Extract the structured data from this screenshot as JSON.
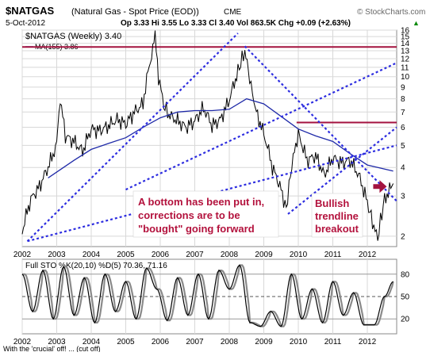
{
  "header": {
    "symbol": "$NATGAS",
    "description": "(Natural Gas - Spot Price (EOD))",
    "exchange": "CME",
    "date": "5-Oct-2012",
    "quote": "Op 3.33  Hi 3.55  Lo 3.33  Cl 3.40  Vol 863.5K  Chg +0.09 (+2.63%)",
    "quote_arrow": "▲",
    "brand": "© StockCharts.com"
  },
  "main_panel": {
    "legend_title": "$NATGAS (Weekly) 3.40",
    "legend_ma": "MA(155) 3.86"
  },
  "annotations": {
    "bottom_lines": [
      "A bottom has been put in,",
      "corrections are to be",
      "\"bought\" going forward"
    ],
    "breakout_lines": [
      "Bullish",
      "trendline",
      "breakout"
    ]
  },
  "sto_panel": {
    "legend": "Full STO %K(20,10) %D(5) 70.36, 71.16"
  },
  "footer_text": "With the 'crucial' off! ... (cut off)",
  "colors": {
    "price": "#000000",
    "ma": "#1f2aa8",
    "trendline": "#2d2de0",
    "resistance": "#a3123f",
    "annotation_text": "#b3123d",
    "sto_k": "#000000",
    "sto_d": "#8a8a8a",
    "arrow": "#a3123f"
  },
  "chart_data": [
    {
      "type": "line",
      "title": "$NATGAS (Weekly)",
      "x_tick_labels": [
        "2002",
        "2003",
        "2004",
        "2005",
        "2006",
        "2007",
        "2008",
        "2009",
        "2010",
        "2011",
        "2012"
      ],
      "y_tick_labels": [
        "2",
        "3",
        "4",
        "5",
        "6",
        "7",
        "8",
        "9",
        "10",
        "11",
        "12",
        "13",
        "14",
        "15",
        "16"
      ],
      "y_scale": "log",
      "ylim": [
        1.8,
        16
      ],
      "grid": true,
      "series": [
        {
          "name": "$NATGAS (Weekly)",
          "x": [
            2002.0,
            2002.25,
            2002.5,
            2002.75,
            2003.0,
            2003.1,
            2003.25,
            2003.5,
            2003.75,
            2004.0,
            2004.25,
            2004.5,
            2004.75,
            2005.0,
            2005.25,
            2005.5,
            2005.75,
            2005.85,
            2005.95,
            2006.1,
            2006.25,
            2006.5,
            2006.75,
            2007.0,
            2007.25,
            2007.5,
            2007.75,
            2008.0,
            2008.25,
            2008.45,
            2008.55,
            2008.75,
            2009.0,
            2009.25,
            2009.5,
            2009.65,
            2009.85,
            2010.0,
            2010.25,
            2010.5,
            2010.75,
            2011.0,
            2011.25,
            2011.5,
            2011.75,
            2012.0,
            2012.15,
            2012.3,
            2012.5,
            2012.75
          ],
          "values": [
            2.1,
            2.9,
            3.3,
            4.0,
            5.0,
            8.0,
            5.5,
            5.2,
            4.7,
            5.9,
            5.8,
            6.1,
            6.5,
            6.2,
            7.0,
            7.6,
            12.5,
            14.8,
            10.0,
            7.5,
            6.8,
            6.4,
            6.0,
            6.4,
            7.3,
            6.1,
            6.5,
            7.9,
            10.5,
            13.0,
            10.5,
            7.2,
            5.6,
            4.0,
            3.2,
            2.6,
            4.4,
            5.6,
            4.3,
            4.5,
            3.7,
            4.4,
            4.2,
            4.3,
            3.7,
            2.8,
            2.3,
            1.95,
            2.9,
            3.4
          ]
        },
        {
          "name": "MA(155)",
          "x": [
            2002.75,
            2003.5,
            2004.0,
            2004.5,
            2005.0,
            2005.5,
            2006.0,
            2006.5,
            2007.0,
            2007.5,
            2008.0,
            2008.5,
            2009.0,
            2009.5,
            2010.0,
            2010.5,
            2011.0,
            2011.5,
            2012.0,
            2012.75
          ],
          "values": [
            3.6,
            4.3,
            4.8,
            5.1,
            5.4,
            6.0,
            6.6,
            7.0,
            7.1,
            7.1,
            7.2,
            8.0,
            7.6,
            6.7,
            5.9,
            5.5,
            5.2,
            4.6,
            4.1,
            3.86
          ]
        }
      ],
      "annotations": [
        "A bottom has been put in, corrections are to be \"bought\" going forward",
        "Bullish trendline breakout"
      ]
    },
    {
      "type": "line",
      "title": "Full STO %K(20,10) %D(5)",
      "x_tick_labels": [
        "2002",
        "2003",
        "2004",
        "2005",
        "2006",
        "2007",
        "2008",
        "2009",
        "2010",
        "2011",
        "2012"
      ],
      "y_tick_labels": [
        "20",
        "50",
        "80"
      ],
      "ylim": [
        0,
        100
      ],
      "series": [
        {
          "name": "%K",
          "x": [
            2002.0,
            2002.3,
            2002.6,
            2002.9,
            2003.2,
            2003.5,
            2003.8,
            2004.1,
            2004.4,
            2004.7,
            2005.0,
            2005.3,
            2005.6,
            2005.9,
            2006.2,
            2006.5,
            2006.8,
            2007.1,
            2007.4,
            2007.7,
            2008.0,
            2008.3,
            2008.6,
            2008.9,
            2009.2,
            2009.5,
            2009.8,
            2010.1,
            2010.4,
            2010.7,
            2011.0,
            2011.3,
            2011.6,
            2011.9,
            2012.2,
            2012.5,
            2012.75
          ],
          "values": [
            80,
            30,
            85,
            20,
            90,
            25,
            75,
            15,
            80,
            30,
            70,
            20,
            88,
            60,
            18,
            75,
            25,
            80,
            20,
            85,
            60,
            92,
            15,
            10,
            30,
            10,
            80,
            20,
            60,
            15,
            70,
            25,
            55,
            12,
            12,
            50,
            70
          ]
        }
      ]
    }
  ]
}
